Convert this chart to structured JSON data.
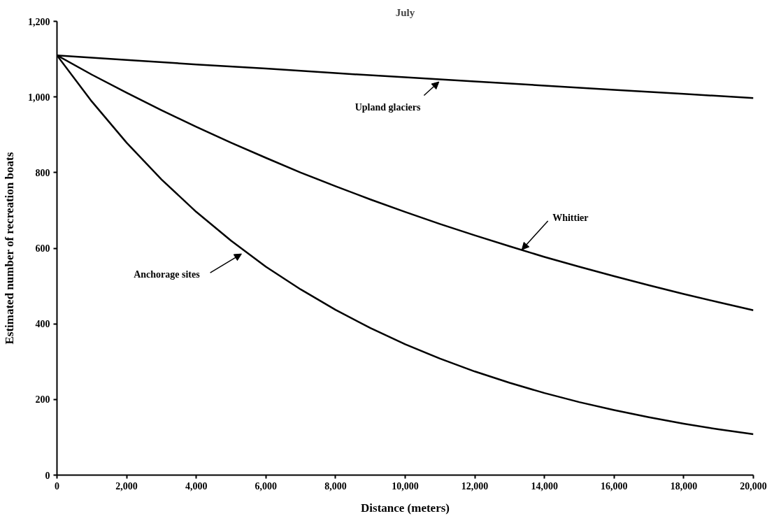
{
  "chart_data": {
    "type": "line",
    "title": "July",
    "xlabel": "Distance (meters)",
    "ylabel": "Estimated number of recreation boats",
    "xlim": [
      0,
      20000
    ],
    "ylim": [
      0,
      1200
    ],
    "xticks": [
      0,
      {
        "value": 2000,
        "label": "2,000"
      },
      {
        "value": 4000,
        "label": "4,000"
      },
      {
        "value": 6000,
        "label": "6,000"
      },
      {
        "value": 8000,
        "label": "8,000"
      },
      {
        "value": 10000,
        "label": "10,000"
      },
      {
        "value": 12000,
        "label": "12,000"
      },
      {
        "value": 14000,
        "label": "14,000"
      },
      {
        "value": 16000,
        "label": "16,000"
      },
      {
        "value": 18000,
        "label": "18,000"
      },
      {
        "value": 20000,
        "label": "20,000"
      }
    ],
    "yticks": [
      0,
      200,
      400,
      600,
      800,
      {
        "value": 1000,
        "label": "1,000"
      },
      {
        "value": 1200,
        "label": "1,200"
      }
    ],
    "grid": false,
    "marker": "none",
    "line_style": "solid",
    "series": [
      {
        "color": "#000000",
        "x": [
          0,
          2000,
          4000,
          6000,
          8000,
          10000,
          12000,
          14000,
          16000,
          18000,
          20000
        ],
        "values": [
          1110,
          1098,
          1086,
          1075,
          1063,
          1052,
          1041,
          1030,
          1019,
          1008,
          997
        ]
      },
      {
        "color": "#000000",
        "x": [
          0,
          1000,
          2000,
          3000,
          4000,
          5000,
          6000,
          7000,
          8000,
          9000,
          10000,
          11000,
          12000,
          13000,
          14000,
          15000,
          16000,
          17000,
          18000,
          19000,
          20000
        ],
        "values": [
          1110,
          1059,
          1011,
          965,
          921,
          879,
          839,
          800,
          764,
          729,
          696,
          664,
          634,
          605,
          577,
          551,
          526,
          502,
          479,
          457,
          436
        ]
      },
      {
        "color": "#000000",
        "x": [
          0,
          1000,
          2000,
          3000,
          4000,
          5000,
          6000,
          7000,
          8000,
          9000,
          10000,
          11000,
          12000,
          13000,
          14000,
          15000,
          16000,
          17000,
          18000,
          19000,
          20000
        ],
        "values": [
          1110,
          988,
          879,
          782,
          696,
          620,
          551,
          491,
          437,
          389,
          346,
          308,
          274,
          244,
          217,
          193,
          172,
          153,
          136,
          121,
          108
        ]
      }
    ],
    "annotations": [
      {
        "text": "Upland glaciers",
        "x": 10970,
        "y": 1040
      },
      {
        "text": "Whittier",
        "x": 13350,
        "y": 596
      },
      {
        "text": "Anchorage sites",
        "x": 5300,
        "y": 585
      }
    ]
  }
}
